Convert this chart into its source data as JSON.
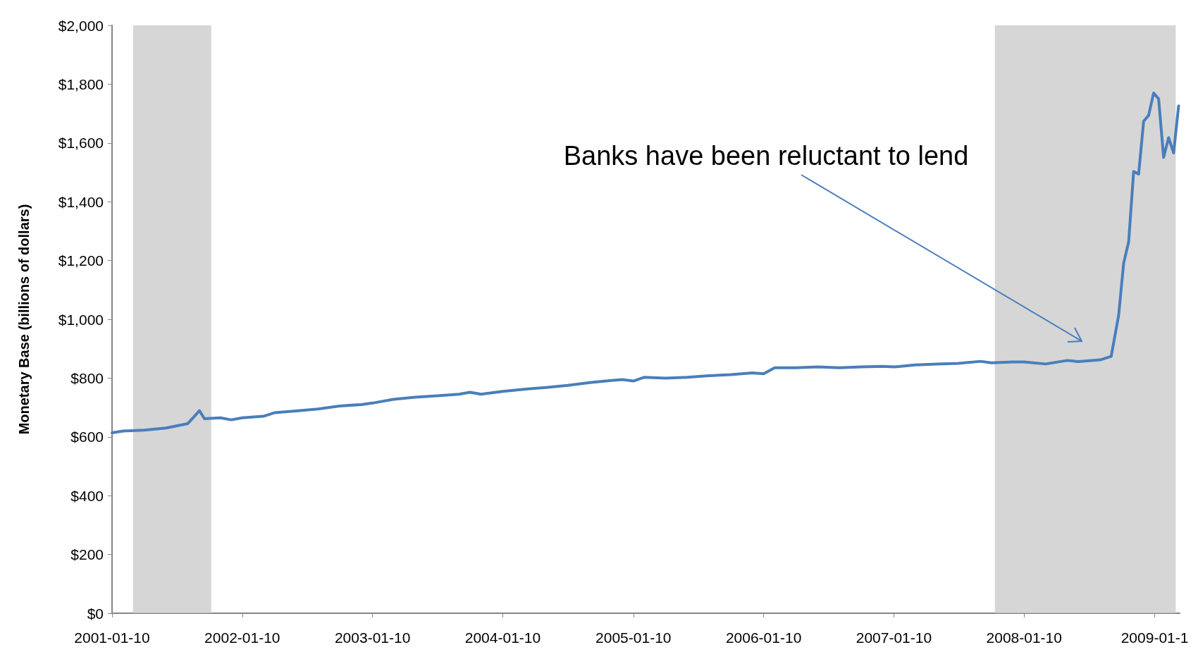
{
  "chart_data": {
    "type": "line",
    "ylabel": "Monetary Base (billions of dollars)",
    "x": [
      "2001-01-10",
      "2001-02-10",
      "2001-04-10",
      "2001-06-10",
      "2001-08-10",
      "2001-09-12",
      "2001-09-26",
      "2001-11-10",
      "2001-12-10",
      "2002-01-10",
      "2002-03-10",
      "2002-04-10",
      "2002-06-10",
      "2002-08-10",
      "2002-10-10",
      "2002-12-10",
      "2003-01-10",
      "2003-03-10",
      "2003-05-10",
      "2003-07-10",
      "2003-09-10",
      "2003-10-10",
      "2003-11-10",
      "2004-01-10",
      "2004-03-10",
      "2004-05-10",
      "2004-07-10",
      "2004-09-10",
      "2004-11-10",
      "2004-12-10",
      "2005-01-10",
      "2005-02-10",
      "2005-04-10",
      "2005-06-10",
      "2005-08-10",
      "2005-10-10",
      "2005-12-10",
      "2006-01-10",
      "2006-02-10",
      "2006-04-10",
      "2006-06-10",
      "2006-08-10",
      "2006-10-10",
      "2006-12-10",
      "2007-01-10",
      "2007-03-10",
      "2007-05-10",
      "2007-07-10",
      "2007-09-10",
      "2007-10-10",
      "2007-12-10",
      "2008-01-10",
      "2008-03-10",
      "2008-05-10",
      "2008-06-10",
      "2008-08-10",
      "2008-09-10",
      "2008-10-01",
      "2008-10-15",
      "2008-10-29",
      "2008-11-12",
      "2008-11-26",
      "2008-12-10",
      "2008-12-24",
      "2009-01-07",
      "2009-01-21",
      "2009-02-04",
      "2009-02-18",
      "2009-03-04",
      "2009-03-18"
    ],
    "series": [
      {
        "color": "#4a7ebb",
        "values": [
          614,
          620,
          623,
          630,
          645,
          689,
          662,
          665,
          658,
          665,
          670,
          682,
          688,
          695,
          705,
          710,
          715,
          728,
          735,
          740,
          745,
          752,
          745,
          755,
          762,
          768,
          775,
          785,
          792,
          795,
          790,
          803,
          800,
          803,
          808,
          812,
          818,
          815,
          835,
          835,
          838,
          835,
          838,
          840,
          838,
          845,
          848,
          850,
          857,
          852,
          855,
          855,
          848,
          860,
          856,
          862,
          874,
          1014,
          1191,
          1263,
          1503,
          1494,
          1674,
          1694,
          1770,
          1750,
          1551,
          1618,
          1566,
          1726
        ]
      }
    ],
    "xlim": [
      "2001-01-10",
      "2009-03-21"
    ],
    "xticks": [
      "2001-01-10",
      "2002-01-10",
      "2003-01-10",
      "2004-01-10",
      "2005-01-10",
      "2006-01-10",
      "2007-01-10",
      "2008-01-10",
      {
        "value": "2009-01-10",
        "label": "2009-01-1"
      }
    ],
    "ylim": [
      0,
      2000
    ],
    "yticks": [
      {
        "value": 0,
        "label": "$0"
      },
      {
        "value": 200,
        "label": "$200"
      },
      {
        "value": 400,
        "label": "$400"
      },
      {
        "value": 600,
        "label": "$600"
      },
      {
        "value": 800,
        "label": "$800"
      },
      {
        "value": 1000,
        "label": "$1,000"
      },
      {
        "value": 1200,
        "label": "$1,200"
      },
      {
        "value": 1400,
        "label": "$1,400"
      },
      {
        "value": 1600,
        "label": "$1,600"
      },
      {
        "value": 1800,
        "label": "$1,800"
      },
      {
        "value": 2000,
        "label": "$2,000"
      }
    ],
    "bands": [
      {
        "axis": "x",
        "from": "2001-03-10",
        "to": "2001-10-15",
        "color": "#c8c8c8"
      },
      {
        "axis": "x",
        "from": "2007-10-20",
        "to": "2009-03-10",
        "color": "#c8c8c8"
      }
    ],
    "annotations": [
      "Banks have been reluctant to lend"
    ],
    "grid": false,
    "marker": "none",
    "line_style": "solid"
  }
}
